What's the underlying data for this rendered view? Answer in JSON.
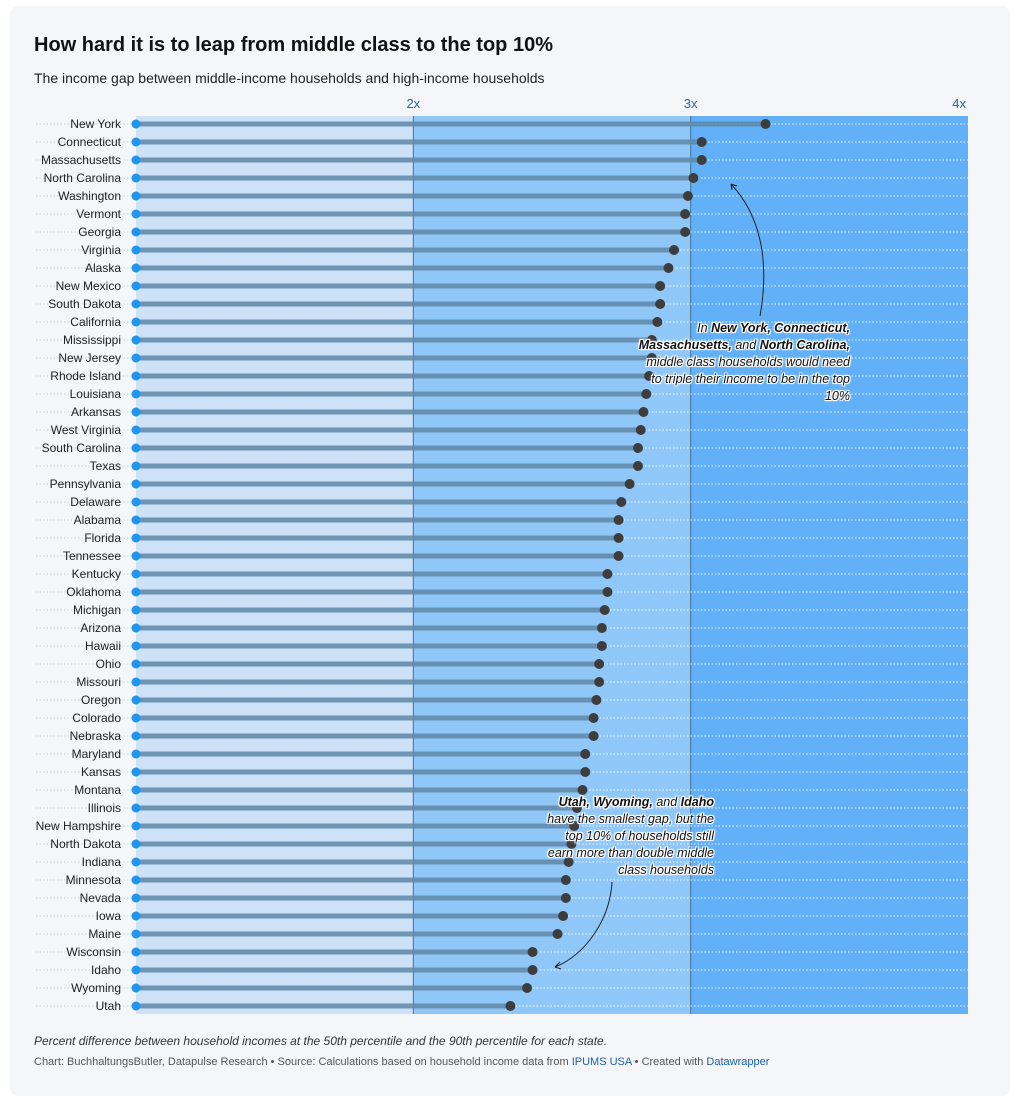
{
  "title": "How hard it is to leap from middle class to the top 10%",
  "subtitle": "The income gap between middle-income households and high-income households",
  "notes": "Percent difference between household incomes at the 50th percentile and the 90th percentile for each state.",
  "credits": {
    "chart": "Chart: BuchhaltungsButler, Datapulse Research",
    "source_prefix": "Source: Calculations based on household income data from",
    "source_link": "IPUMS USA",
    "created_prefix": "Created with",
    "created_link": "Datawrapper"
  },
  "annotations": {
    "top": {
      "in": "In",
      "s1": "New York,",
      "s2": "Connecticut,",
      "s3": "Massachusetts,",
      "and": "and",
      "s4": "North Carolina,",
      "rest1": "middle class households would need",
      "rest2": "to triple their income to be in the top",
      "rest3": "10%"
    },
    "bottom": {
      "s1": "Utah,",
      "s2": "Wyoming,",
      "and": "and",
      "s3": "Idaho",
      "rest1": "have the smallest gap, but the",
      "rest2": "top 10% of households still",
      "rest3": "earn more than double middle",
      "rest4": "class households"
    }
  },
  "colors": {
    "band_low": "#cde2f7",
    "band_mid": "#90c7f9",
    "band_high": "#62b0f8",
    "start_dot": "#1e96f0",
    "end_dot": "#3d3d3d",
    "stem": "#5e87a8"
  },
  "chart_data": {
    "type": "dot-range",
    "x_axis": {
      "ticks": [
        2,
        3,
        4
      ],
      "tick_labels": [
        "2x",
        "3x",
        "4x"
      ],
      "range": [
        1,
        4
      ]
    },
    "series": [
      {
        "name": "",
        "values": []
      }
    ],
    "start": 1,
    "states": [
      "New York",
      "Connecticut",
      "Massachusetts",
      "North Carolina",
      "Washington",
      "Vermont",
      "Georgia",
      "Virginia",
      "Alaska",
      "New Mexico",
      "South Dakota",
      "California",
      "Mississippi",
      "New Jersey",
      "Rhode Island",
      "Louisiana",
      "Arkansas",
      "West Virginia",
      "South Carolina",
      "Texas",
      "Pennsylvania",
      "Delaware",
      "Alabama",
      "Florida",
      "Tennessee",
      "Kentucky",
      "Oklahoma",
      "Michigan",
      "Arizona",
      "Hawaii",
      "Ohio",
      "Missouri",
      "Oregon",
      "Colorado",
      "Nebraska",
      "Maryland",
      "Kansas",
      "Montana",
      "Illinois",
      "New Hampshire",
      "North Dakota",
      "Indiana",
      "Minnesota",
      "Nevada",
      "Iowa",
      "Maine",
      "Wisconsin",
      "Idaho",
      "Wyoming",
      "Utah"
    ],
    "values": [
      3.27,
      3.04,
      3.04,
      3.01,
      2.99,
      2.98,
      2.98,
      2.94,
      2.92,
      2.89,
      2.89,
      2.88,
      2.86,
      2.86,
      2.85,
      2.84,
      2.83,
      2.82,
      2.81,
      2.81,
      2.78,
      2.75,
      2.74,
      2.74,
      2.74,
      2.7,
      2.7,
      2.69,
      2.68,
      2.68,
      2.67,
      2.67,
      2.66,
      2.65,
      2.65,
      2.62,
      2.62,
      2.61,
      2.59,
      2.58,
      2.57,
      2.56,
      2.55,
      2.55,
      2.54,
      2.52,
      2.43,
      2.43,
      2.41,
      2.35
    ]
  }
}
